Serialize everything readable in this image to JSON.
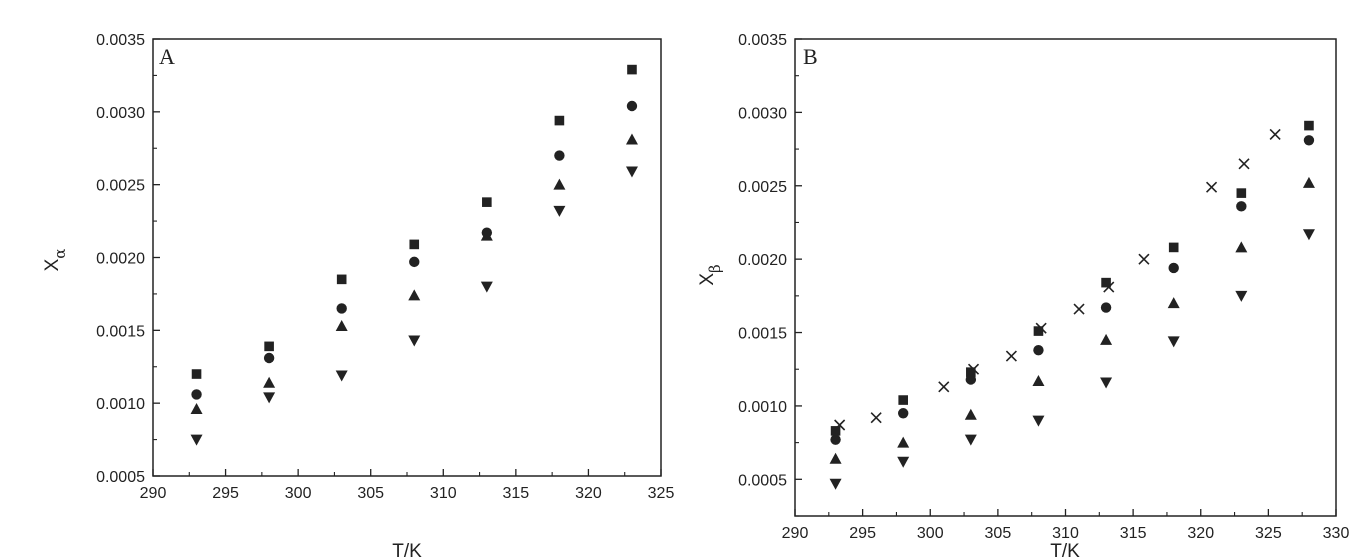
{
  "chart_data": [
    {
      "type": "scatter",
      "panel_label": "A",
      "xlabel": "T/K",
      "ylabel_base": "X",
      "ylabel_sub": "α",
      "xlim": [
        290,
        325
      ],
      "ylim": [
        0.0005,
        0.0035
      ],
      "xticks": [
        "290",
        "295",
        "300",
        "305",
        "310",
        "315",
        "320",
        "325"
      ],
      "yticks": [
        "0.0005",
        "0.0010",
        "0.0015",
        "0.0020",
        "0.0025",
        "0.0030",
        "0.0035"
      ],
      "grid": false,
      "series": [
        {
          "marker": "square",
          "x": [
            293,
            298,
            303,
            308,
            313,
            318,
            323
          ],
          "y": [
            0.0012,
            0.00139,
            0.00185,
            0.00209,
            0.00238,
            0.00294,
            0.00329
          ]
        },
        {
          "marker": "circle",
          "x": [
            293,
            298,
            303,
            308,
            313,
            318,
            323
          ],
          "y": [
            0.00106,
            0.00131,
            0.00165,
            0.00197,
            0.00217,
            0.0027,
            0.00304
          ]
        },
        {
          "marker": "triangle-up",
          "x": [
            293,
            298,
            303,
            308,
            313,
            318,
            323
          ],
          "y": [
            0.00096,
            0.00114,
            0.00153,
            0.00174,
            0.00215,
            0.0025,
            0.00281
          ]
        },
        {
          "marker": "triangle-down",
          "x": [
            293,
            298,
            303,
            308,
            313,
            318,
            323
          ],
          "y": [
            0.00075,
            0.00104,
            0.00119,
            0.00143,
            0.0018,
            0.00232,
            0.00259
          ]
        }
      ]
    },
    {
      "type": "scatter",
      "panel_label": "B",
      "xlabel": "T/K",
      "ylabel_base": "X",
      "ylabel_sub": "β",
      "xlim": [
        290,
        330
      ],
      "ylim": [
        0.00025,
        0.0035
      ],
      "xticks": [
        "290",
        "295",
        "300",
        "305",
        "310",
        "315",
        "320",
        "325",
        "330"
      ],
      "yticks": [
        "0.0005",
        "0.0010",
        "0.0015",
        "0.0020",
        "0.0025",
        "0.0030",
        "0.0035"
      ],
      "grid": false,
      "series": [
        {
          "marker": "square",
          "x": [
            293,
            298,
            303,
            308,
            313,
            318,
            323,
            328
          ],
          "y": [
            0.00083,
            0.00104,
            0.00123,
            0.00151,
            0.00184,
            0.00208,
            0.00245,
            0.00291
          ]
        },
        {
          "marker": "circle",
          "x": [
            293,
            298,
            303,
            308,
            313,
            318,
            323,
            328
          ],
          "y": [
            0.00077,
            0.00095,
            0.00118,
            0.00138,
            0.00167,
            0.00194,
            0.00236,
            0.00281
          ]
        },
        {
          "marker": "triangle-up",
          "x": [
            293,
            298,
            303,
            308,
            313,
            318,
            323,
            328
          ],
          "y": [
            0.00064,
            0.00075,
            0.00094,
            0.00117,
            0.00145,
            0.0017,
            0.00208,
            0.00252
          ]
        },
        {
          "marker": "triangle-down",
          "x": [
            293,
            298,
            303,
            308,
            313,
            318,
            323,
            328
          ],
          "y": [
            0.00047,
            0.00062,
            0.00077,
            0.0009,
            0.00116,
            0.00144,
            0.00175,
            0.00217
          ]
        },
        {
          "marker": "cross",
          "x": [
            293.3,
            296,
            301,
            303.2,
            306,
            308.2,
            311,
            313.2,
            315.8,
            320.8,
            323.2,
            325.5
          ],
          "y": [
            0.00087,
            0.00092,
            0.00113,
            0.00125,
            0.00134,
            0.00153,
            0.00166,
            0.00181,
            0.002,
            0.00249,
            0.00265,
            0.00285
          ]
        }
      ]
    }
  ]
}
